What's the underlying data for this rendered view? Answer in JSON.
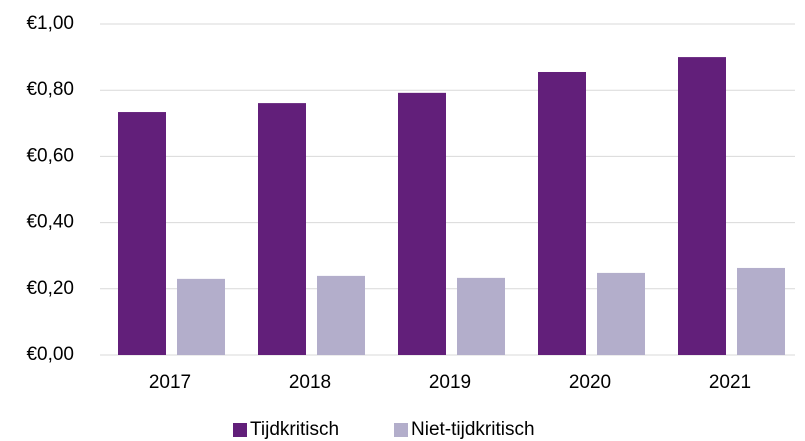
{
  "chart_data": {
    "type": "bar",
    "categories": [
      "2017",
      "2018",
      "2019",
      "2020",
      "2021"
    ],
    "series": [
      {
        "name": "Tijdkritisch",
        "color": "#621f7a",
        "values": [
          0.734,
          0.761,
          0.792,
          0.855,
          0.9
        ]
      },
      {
        "name": "Niet-tijdkritisch",
        "color": "#b3aecb",
        "values": [
          0.23,
          0.239,
          0.233,
          0.248,
          0.263
        ]
      }
    ],
    "ylim": [
      0,
      1
    ],
    "yticks": [
      {
        "value": 0,
        "label": "€0,00"
      },
      {
        "value": 0.2,
        "label": "€0,20"
      },
      {
        "value": 0.4,
        "label": "€0,40"
      },
      {
        "value": 0.6,
        "label": "€0,60"
      },
      {
        "value": 0.8,
        "label": "€0,80"
      },
      {
        "value": 1,
        "label": "€1,00"
      }
    ],
    "grid": true,
    "legend": "bottom"
  }
}
